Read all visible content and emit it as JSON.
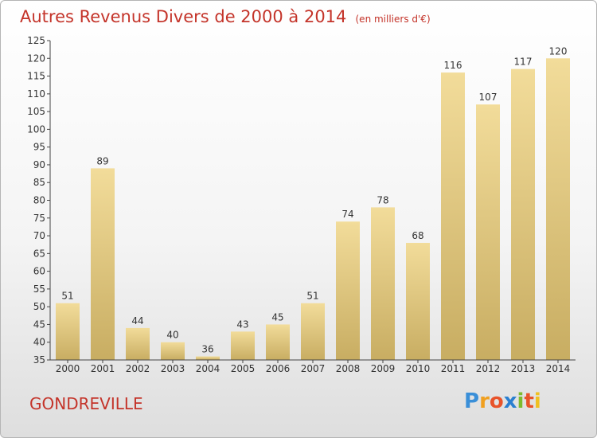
{
  "page": {
    "title": "Autres Revenus Divers de 2000 à 2014",
    "title_unit": "(en milliers d'€)",
    "place": "GONDREVILLE",
    "logo": {
      "letters": [
        "P",
        "r",
        "o",
        "x",
        "i",
        "t",
        "i"
      ],
      "colors": [
        "#3a8fd8",
        "#f0a020",
        "#e8532a",
        "#2a7fd0",
        "#7dbb2e",
        "#e8532a",
        "#f0c020"
      ]
    }
  },
  "chart_data": {
    "type": "bar",
    "title": "Autres Revenus Divers de 2000 à 2014",
    "subtitle": "(en milliers d'€)",
    "categories": [
      "2000",
      "2001",
      "2002",
      "2003",
      "2004",
      "2005",
      "2006",
      "2007",
      "2008",
      "2009",
      "2010",
      "2011",
      "2012",
      "2013",
      "2014"
    ],
    "values": [
      51,
      89,
      44,
      40,
      36,
      43,
      45,
      51,
      74,
      78,
      68,
      116,
      107,
      117,
      120
    ],
    "ylim": [
      35,
      125
    ],
    "yticks": [
      35,
      40,
      45,
      50,
      55,
      60,
      65,
      70,
      75,
      80,
      85,
      90,
      95,
      100,
      105,
      110,
      115,
      120,
      125
    ],
    "grid": false,
    "legend": "none",
    "colors": {
      "bar_top": "#f2dc9a",
      "bar_bottom": "#c8ad62",
      "axis": "#444444",
      "text": "#333333"
    }
  }
}
